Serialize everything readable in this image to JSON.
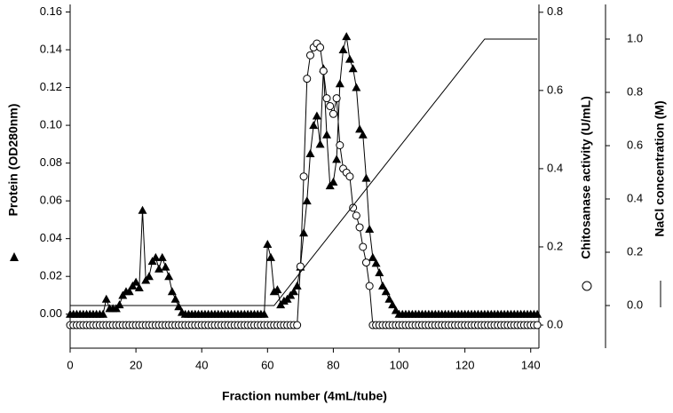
{
  "chart_data": {
    "type": "line",
    "xlabel": "Fraction number (4mL/tube)",
    "ylabel": "Protein (OD280nm)",
    "y2label": "Chitosanase activity (U/mL)",
    "y3label": "NaCl concentration (M)",
    "xlim": [
      0,
      142.5
    ],
    "xticks": [
      0,
      20,
      40,
      60,
      80,
      100,
      120,
      140
    ],
    "ylim": [
      -0.018,
      0.164
    ],
    "yticks": [
      {
        "value": 0,
        "label": "0.00"
      },
      {
        "value": 0.02,
        "label": "0.02"
      },
      {
        "value": 0.04,
        "label": "0.04"
      },
      {
        "value": 0.06,
        "label": "0.06"
      },
      {
        "value": 0.08,
        "label": "0.08"
      },
      {
        "value": 0.1,
        "label": "0.10"
      },
      {
        "value": 0.12,
        "label": "0.12"
      },
      {
        "value": 0.14,
        "label": "0.14"
      },
      {
        "value": 0.16,
        "label": "0.16"
      }
    ],
    "y2lim": [
      -0.059,
      0.82
    ],
    "y2ticks": [
      {
        "value": 0,
        "label": "0.0"
      },
      {
        "value": 0.2,
        "label": "0.2"
      },
      {
        "value": 0.4,
        "label": "0.4"
      },
      {
        "value": 0.6,
        "label": "0.6"
      },
      {
        "value": 0.8,
        "label": "0.8"
      }
    ],
    "y3lim": [
      -0.16,
      1.13
    ],
    "y3ticks": [
      {
        "value": 0,
        "label": "0.0"
      },
      {
        "value": 0.2,
        "label": "0.2"
      },
      {
        "value": 0.4,
        "label": "0.4"
      },
      {
        "value": 0.6,
        "label": "0.6"
      },
      {
        "value": 0.8,
        "label": "0.8"
      },
      {
        "value": 1,
        "label": "1.0"
      }
    ],
    "series": [
      {
        "marker": "triangle",
        "color": "#000000",
        "axis": "y",
        "x": [
          0,
          1,
          2,
          3,
          4,
          5,
          6,
          7,
          8,
          9,
          10,
          11,
          12,
          13,
          14,
          15,
          16,
          17,
          18,
          19,
          20,
          21,
          22,
          23,
          24,
          25,
          26,
          27,
          28,
          29,
          30,
          31,
          32,
          33,
          34,
          35,
          36,
          37,
          38,
          39,
          40,
          41,
          42,
          43,
          44,
          45,
          46,
          47,
          48,
          49,
          50,
          51,
          52,
          53,
          54,
          55,
          56,
          57,
          58,
          59,
          60,
          61,
          62,
          63,
          64,
          65,
          66,
          67,
          68,
          69,
          70,
          71,
          72,
          73,
          74,
          75,
          76,
          77,
          78,
          79,
          80,
          81,
          82,
          83,
          84,
          85,
          86,
          87,
          88,
          89,
          90,
          91,
          92,
          93,
          94,
          95,
          96,
          97,
          98,
          99,
          100,
          101,
          102,
          103,
          104,
          105,
          106,
          107,
          108,
          109,
          110,
          111,
          112,
          113,
          114,
          115,
          116,
          117,
          118,
          119,
          120,
          121,
          122,
          123,
          124,
          125,
          126,
          127,
          128,
          129,
          130,
          131,
          132,
          133,
          134,
          135,
          136,
          137,
          138,
          139,
          140,
          141,
          142
        ],
        "values": [
          0,
          0,
          0,
          0,
          0,
          0,
          0,
          0,
          0,
          0,
          0,
          0.008,
          0.003,
          0.003,
          0.003,
          0.005,
          0.01,
          0.012,
          0.012,
          0.015,
          0.017,
          0.014,
          0.055,
          0.018,
          0.02,
          0.028,
          0.03,
          0.024,
          0.03,
          0.025,
          0.02,
          0.012,
          0.008,
          0.004,
          0.001,
          0,
          0,
          0,
          0,
          0,
          0,
          0,
          0,
          0,
          0,
          0,
          0,
          0,
          0,
          0,
          0,
          0,
          0,
          0,
          0,
          0,
          0,
          0,
          0,
          0,
          0.037,
          0.03,
          0.012,
          0.013,
          0.005,
          0.007,
          0.008,
          0.01,
          0.012,
          0.015,
          0.025,
          0.043,
          0.06,
          0.085,
          0.1,
          0.105,
          0.09,
          0.13,
          0.095,
          0.068,
          0.07,
          0.082,
          0.122,
          0.14,
          0.147,
          0.135,
          0.13,
          0.12,
          0.098,
          0.095,
          0.072,
          0.045,
          0.03,
          0.027,
          0.022,
          0.015,
          0.012,
          0.008,
          0.005,
          0.002,
          0,
          0,
          0,
          0,
          0,
          0,
          0,
          0,
          0,
          0,
          0,
          0,
          0,
          0,
          0,
          0,
          0,
          0,
          0,
          0,
          0,
          0,
          0,
          0,
          0,
          0,
          0,
          0,
          0,
          0,
          0,
          0,
          0,
          0,
          0,
          0,
          0,
          0,
          0,
          0,
          0,
          0,
          0
        ]
      },
      {
        "marker": "circle",
        "color": "#000000",
        "axis": "y2",
        "x": [
          0,
          1,
          2,
          3,
          4,
          5,
          6,
          7,
          8,
          9,
          10,
          11,
          12,
          13,
          14,
          15,
          16,
          17,
          18,
          19,
          20,
          21,
          22,
          23,
          24,
          25,
          26,
          27,
          28,
          29,
          30,
          31,
          32,
          33,
          34,
          35,
          36,
          37,
          38,
          39,
          40,
          41,
          42,
          43,
          44,
          45,
          46,
          47,
          48,
          49,
          50,
          51,
          52,
          53,
          54,
          55,
          56,
          57,
          58,
          59,
          60,
          61,
          62,
          63,
          64,
          65,
          66,
          67,
          68,
          69,
          70,
          71,
          72,
          73,
          74,
          75,
          76,
          77,
          78,
          79,
          80,
          81,
          82,
          83,
          84,
          85,
          86,
          87,
          88,
          89,
          90,
          91,
          92,
          93,
          94,
          95,
          96,
          97,
          98,
          99,
          100,
          101,
          102,
          103,
          104,
          105,
          106,
          107,
          108,
          109,
          110,
          111,
          112,
          113,
          114,
          115,
          116,
          117,
          118,
          119,
          120,
          121,
          122,
          123,
          124,
          125,
          126,
          127,
          128,
          129,
          130,
          131,
          132,
          133,
          134,
          135,
          136,
          137,
          138,
          139,
          140,
          141,
          142
        ],
        "values": [
          0,
          0,
          0,
          0,
          0,
          0,
          0,
          0,
          0,
          0,
          0,
          0,
          0,
          0,
          0,
          0,
          0,
          0,
          0,
          0,
          0,
          0,
          0,
          0,
          0,
          0,
          0,
          0,
          0,
          0,
          0,
          0,
          0,
          0,
          0,
          0,
          0,
          0,
          0,
          0,
          0,
          0,
          0,
          0,
          0,
          0,
          0,
          0,
          0,
          0,
          0,
          0,
          0,
          0,
          0,
          0,
          0,
          0,
          0,
          0,
          0,
          0,
          0,
          0,
          0,
          0,
          0,
          0,
          0,
          0,
          0.15,
          0.38,
          0.63,
          0.69,
          0.71,
          0.72,
          0.71,
          0.65,
          0.58,
          0.56,
          0.54,
          0.58,
          0.46,
          0.4,
          0.39,
          0.38,
          0.3,
          0.28,
          0.25,
          0.2,
          0.16,
          0.1,
          0,
          0,
          0,
          0,
          0,
          0,
          0,
          0,
          0,
          0,
          0,
          0,
          0,
          0,
          0,
          0,
          0,
          0,
          0,
          0,
          0,
          0,
          0,
          0,
          0,
          0,
          0,
          0,
          0,
          0,
          0,
          0,
          0,
          0,
          0,
          0,
          0,
          0,
          0,
          0,
          0,
          0,
          0,
          0,
          0,
          0,
          0,
          0,
          0,
          0,
          0
        ]
      },
      {
        "marker": "none",
        "color": "#000000",
        "axis": "y3",
        "x": [
          0,
          62,
          126,
          142
        ],
        "values": [
          0,
          0,
          1,
          1
        ]
      }
    ]
  }
}
